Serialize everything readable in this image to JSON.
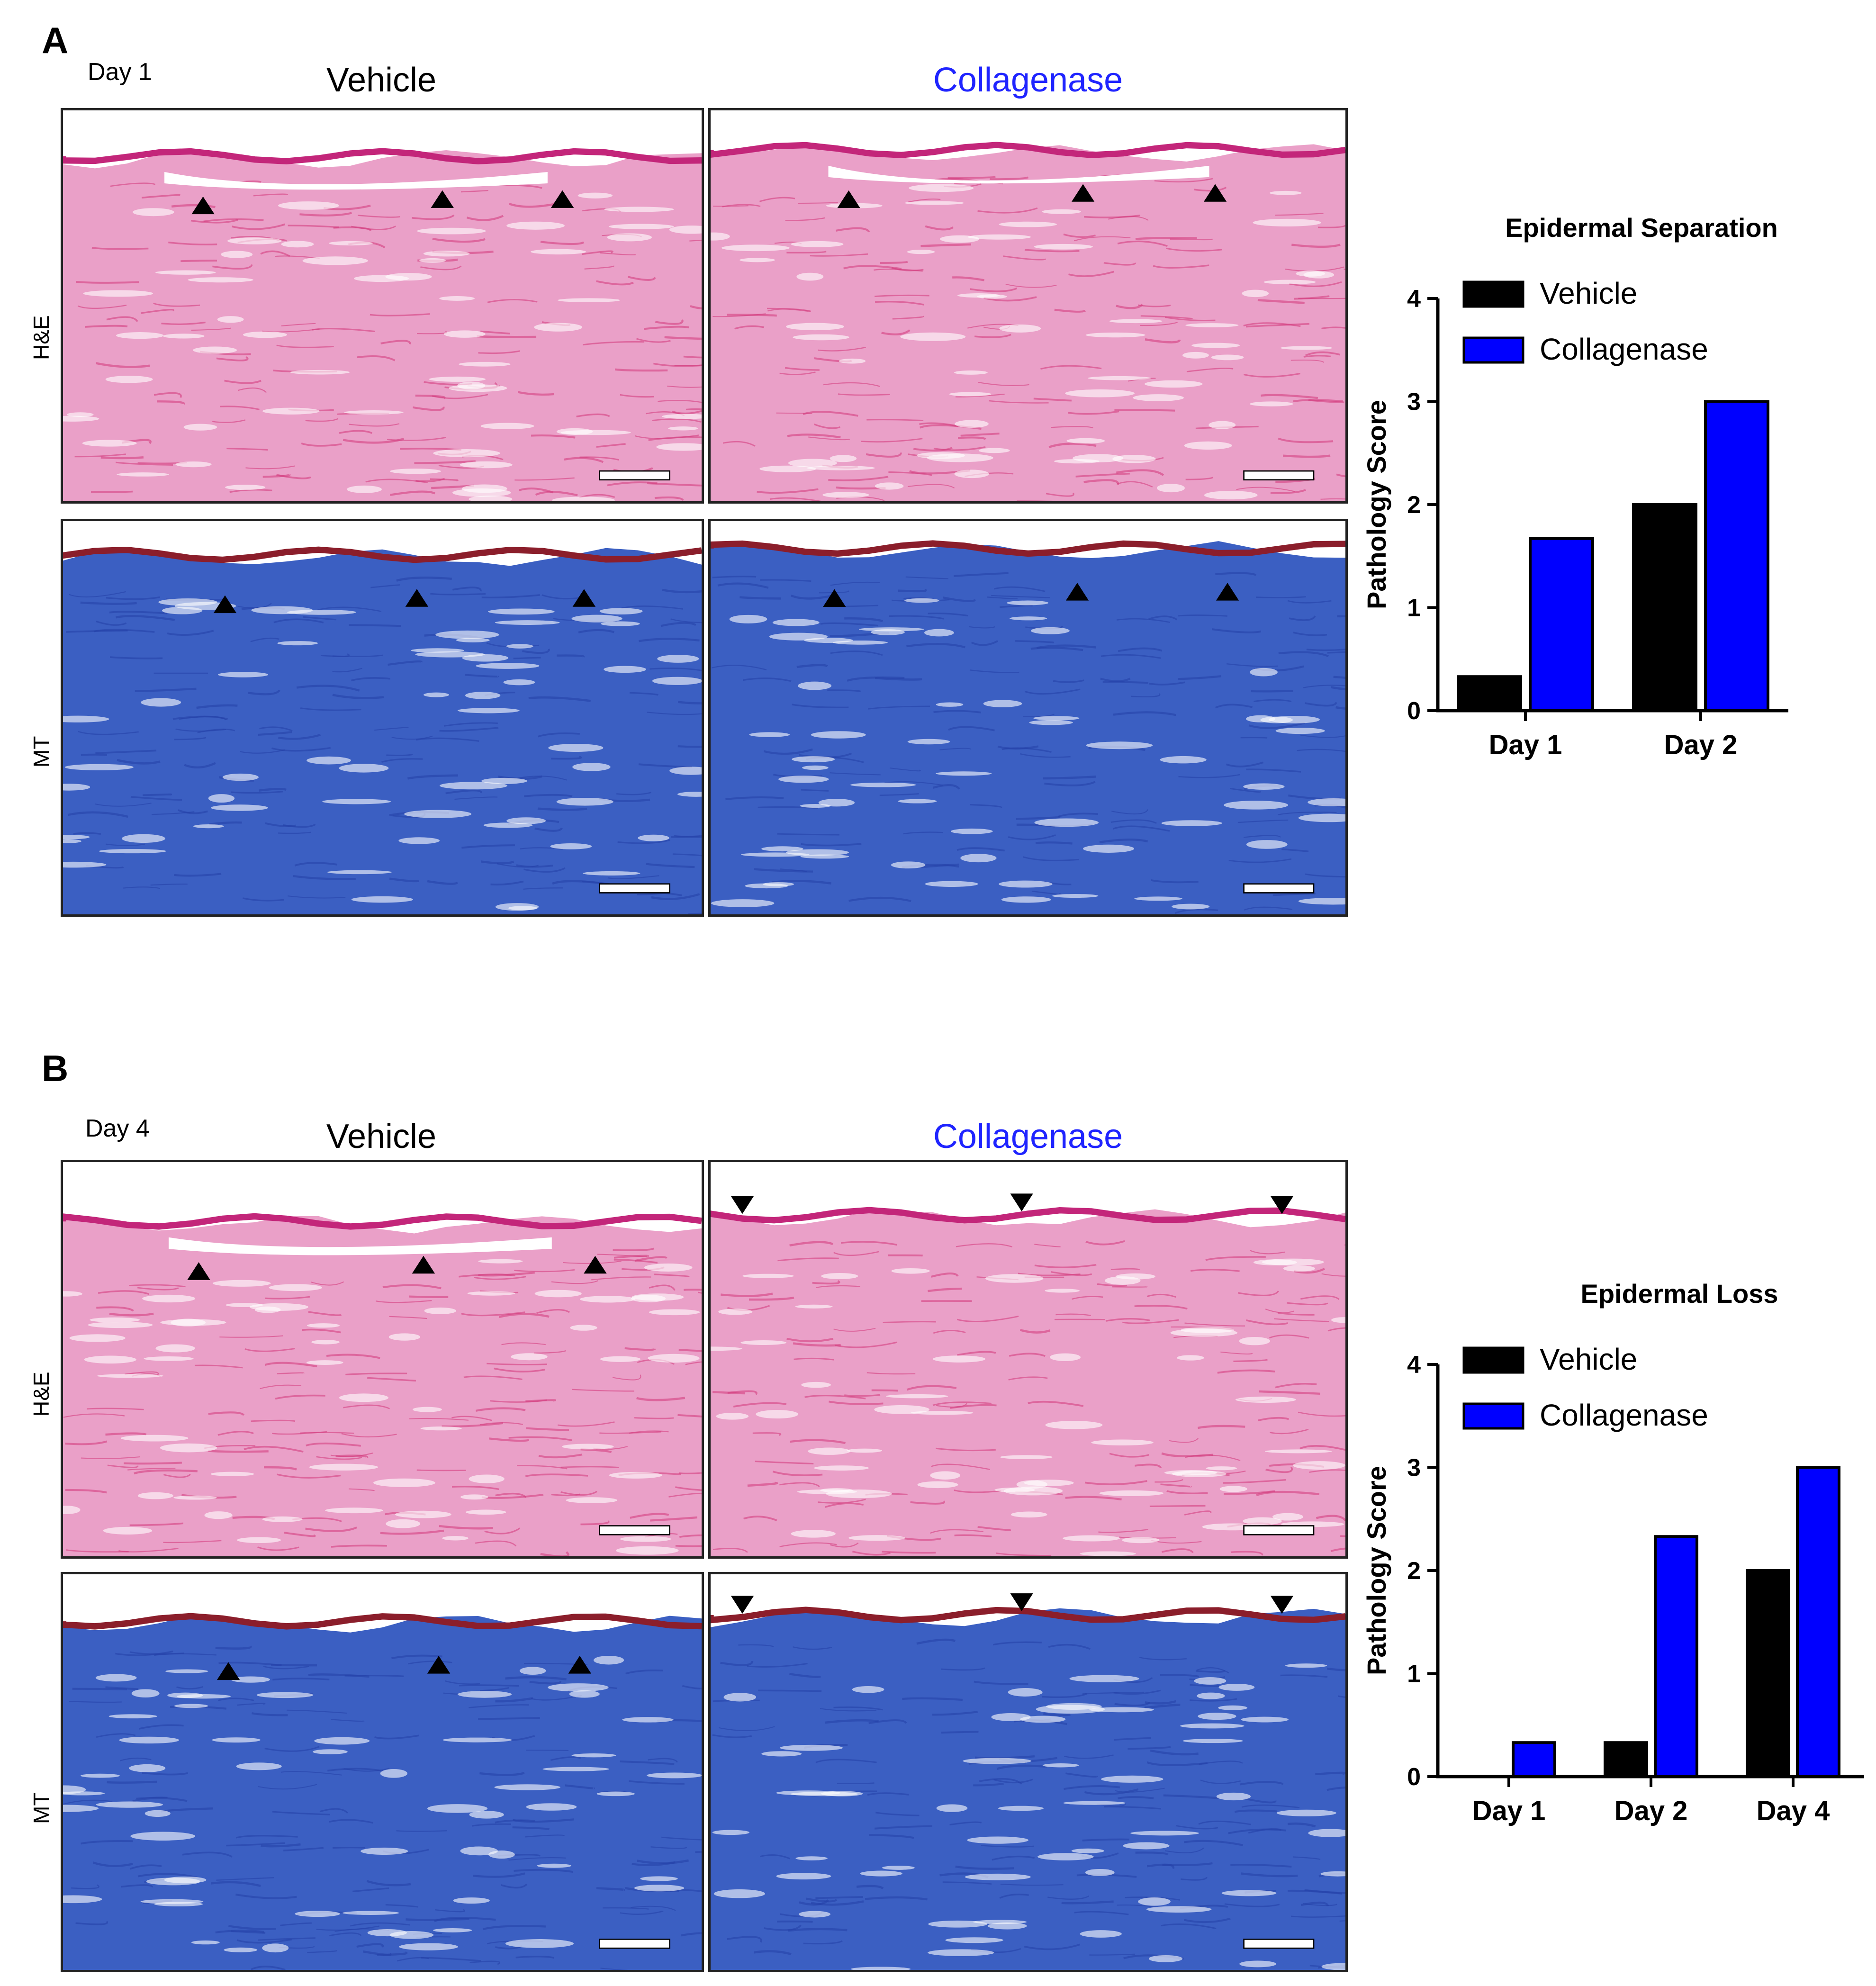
{
  "colors": {
    "vehicle": "#000000",
    "collagenase": "#0000ff",
    "collagenase_title": "#1f24ff",
    "he_tissue": "#eaa0c8",
    "he_dark": "#d2367a",
    "he_epidermis": "#c3267a",
    "mt_tissue": "#3b5fc2",
    "mt_dark": "#2440a8",
    "mt_epidermis": "#8b1e2b",
    "scale_bar": "#ffffff"
  },
  "panel_a": {
    "letter": "A",
    "day_label": "Day 1",
    "col_vehicle": "Vehicle",
    "col_collagenase": "Collagenase",
    "row_he": "H&E",
    "row_mt": "MT",
    "images": [
      {
        "name": "a-he-vehicle",
        "stain": "H&E",
        "group": "Vehicle",
        "markers": "up-arrowheads"
      },
      {
        "name": "a-he-collagenase",
        "stain": "H&E",
        "group": "Collagenase",
        "markers": "up-arrowheads"
      },
      {
        "name": "a-mt-vehicle",
        "stain": "MT",
        "group": "Vehicle",
        "markers": "up-arrowheads"
      },
      {
        "name": "a-mt-collagenase",
        "stain": "MT",
        "group": "Collagenase",
        "markers": "up-arrowheads"
      }
    ]
  },
  "panel_b": {
    "letter": "B",
    "day_label": "Day 4",
    "col_vehicle": "Vehicle",
    "col_collagenase": "Collagenase",
    "row_he": "H&E",
    "row_mt": "MT",
    "images": [
      {
        "name": "b-he-vehicle",
        "stain": "H&E",
        "group": "Vehicle",
        "markers": "up-arrowheads"
      },
      {
        "name": "b-he-collagenase",
        "stain": "H&E",
        "group": "Collagenase",
        "markers": "down-arrowheads"
      },
      {
        "name": "b-mt-vehicle",
        "stain": "MT",
        "group": "Vehicle",
        "markers": "up-arrowheads"
      },
      {
        "name": "b-mt-collagenase",
        "stain": "MT",
        "group": "Collagenase",
        "markers": "down-arrowheads"
      }
    ]
  },
  "chart_data": [
    {
      "type": "bar",
      "title": "Epidermal Separation",
      "ylabel": "Pathology Score",
      "xlabel": "",
      "categories": [
        "Day 1",
        "Day 2"
      ],
      "series": [
        {
          "name": "Vehicle",
          "color": "#000000",
          "values": [
            0.33,
            2.0
          ]
        },
        {
          "name": "Collagenase",
          "color": "#0000ff",
          "values": [
            1.67,
            3.0
          ]
        }
      ],
      "ylim": [
        0,
        4
      ],
      "yticks": [
        "0",
        "1",
        "2",
        "3",
        "4"
      ],
      "grid": false,
      "legend": "top-left"
    },
    {
      "type": "bar",
      "title": "Epidermal Loss",
      "ylabel": "Pathology Score",
      "xlabel": "",
      "categories": [
        "Day 1",
        "Day 2",
        "Day 4"
      ],
      "series": [
        {
          "name": "Vehicle",
          "color": "#000000",
          "values": [
            0,
            0.33,
            2.0
          ]
        },
        {
          "name": "Collagenase",
          "color": "#0000ff",
          "values": [
            0.33,
            2.33,
            3.0
          ]
        }
      ],
      "ylim": [
        0,
        4
      ],
      "yticks": [
        "0",
        "1",
        "2",
        "3",
        "4"
      ],
      "grid": false,
      "legend": "top-left"
    }
  ]
}
